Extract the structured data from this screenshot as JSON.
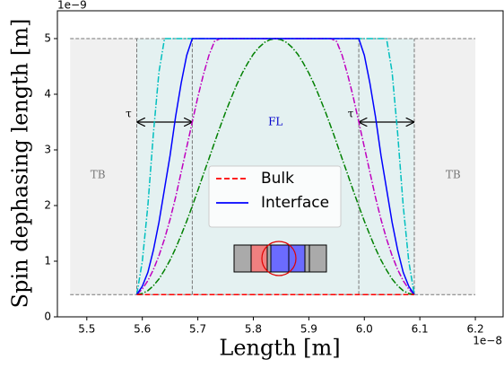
{
  "chart_data": {
    "type": "line",
    "xlabel": "Length [m]",
    "ylabel": "Spin dephasing length [m]",
    "x_offset_label": "1e−8",
    "y_offset_label": "1e−9",
    "xlim": [
      5.447,
      6.25
    ],
    "ylim": [
      0,
      5.5
    ],
    "xticks": [
      5.5,
      5.6,
      5.7,
      5.8,
      5.9,
      {
        "value": 6,
        "label": "6.0"
      },
      6.1,
      6.2
    ],
    "yticks": [
      0,
      1,
      2,
      3,
      4,
      5
    ],
    "legend": "center",
    "regions": [
      {
        "label": "TB",
        "x": [
          5.47,
          5.59
        ],
        "y": [
          0.4,
          5
        ],
        "color": "#f0f0f0",
        "label_at": [
          5.52,
          2.55
        ]
      },
      {
        "label": "FL",
        "x": [
          5.59,
          6.09
        ],
        "y": [
          0.4,
          5
        ],
        "color": "#e4f1f1",
        "label_at": [
          5.84,
          3.5
        ],
        "label_color": "#0000cc"
      },
      {
        "label": "TB",
        "x": [
          6.09,
          6.2
        ],
        "y": [
          0.4,
          5
        ],
        "color": "#f0f0f0",
        "label_at": [
          6.16,
          2.55
        ]
      }
    ],
    "boundaries": [
      5.59,
      5.69,
      5.99,
      6.09
    ],
    "hlines": [
      0.4,
      5
    ],
    "arrows": [
      {
        "label": "τ",
        "x": [
          5.59,
          5.69
        ],
        "y": 3.5
      },
      {
        "label": "τ",
        "x": [
          5.99,
          6.09
        ],
        "y": 3.5
      }
    ],
    "x": [
      5.59,
      5.6,
      5.61,
      5.62,
      5.63,
      5.64,
      5.65,
      5.66,
      5.67,
      5.68,
      5.69,
      5.7,
      5.71,
      5.72,
      5.73,
      5.74,
      5.75,
      5.76,
      5.77,
      5.78,
      5.79,
      5.8,
      5.81,
      5.82,
      5.83,
      5.84,
      5.85,
      5.86,
      5.87,
      5.88,
      5.89,
      5.9,
      5.91,
      5.92,
      5.93,
      5.94,
      5.95,
      5.96,
      5.97,
      5.98,
      5.99,
      6.0,
      6.01,
      6.02,
      6.03,
      6.04,
      6.05,
      6.06,
      6.07,
      6.08,
      6.09
    ],
    "series": [
      {
        "color": "#00bfbf",
        "dash": "dashdot",
        "values": [
          0.4,
          1.0,
          2.0,
          3.3,
          4.4,
          5,
          5,
          5,
          5,
          5,
          5,
          5,
          5,
          5,
          5,
          5,
          5,
          5,
          5,
          5,
          5,
          5,
          5,
          5,
          5,
          5,
          5,
          5,
          5,
          5,
          5,
          5,
          5,
          5,
          5,
          5,
          5,
          5,
          5,
          5,
          5,
          5,
          5,
          5,
          5,
          5,
          4.4,
          3.3,
          2.0,
          1.0,
          0.4
        ]
      },
      {
        "color": "#bf00bf",
        "dash": "dashdot",
        "values": [
          0.4,
          0.5,
          0.65,
          0.85,
          1.1,
          1.4,
          1.75,
          2.15,
          2.6,
          3.05,
          3.5,
          3.95,
          4.35,
          4.7,
          4.95,
          5,
          5,
          5,
          5,
          5,
          5,
          5,
          5,
          5,
          5,
          5,
          5,
          5,
          5,
          5,
          5,
          5,
          5,
          5,
          5,
          5,
          4.95,
          4.7,
          4.35,
          3.95,
          3.5,
          3.05,
          2.6,
          2.15,
          1.75,
          1.4,
          1.1,
          0.85,
          0.65,
          0.5,
          0.4
        ]
      },
      {
        "color": "#008000",
        "dash": "dashdot",
        "values": [
          0.4,
          0.42,
          0.47,
          0.56,
          0.68,
          0.84,
          1.02,
          1.23,
          1.47,
          1.72,
          1.99,
          2.27,
          2.56,
          2.84,
          3.13,
          3.41,
          3.68,
          3.93,
          4.17,
          4.38,
          4.56,
          4.72,
          4.84,
          4.93,
          4.98,
          5.0,
          4.98,
          4.93,
          4.84,
          4.72,
          4.56,
          4.38,
          4.17,
          3.93,
          3.68,
          3.41,
          3.13,
          2.84,
          2.56,
          2.27,
          1.99,
          1.72,
          1.47,
          1.23,
          1.02,
          0.84,
          0.68,
          0.56,
          0.47,
          0.42,
          0.4
        ]
      },
      {
        "name": "Interface",
        "color": "#0000ff",
        "dash": "solid",
        "values": [
          0.4,
          0.55,
          0.8,
          1.2,
          1.7,
          2.3,
          2.9,
          3.6,
          4.2,
          4.7,
          5,
          5,
          5,
          5,
          5,
          5,
          5,
          5,
          5,
          5,
          5,
          5,
          5,
          5,
          5,
          5,
          5,
          5,
          5,
          5,
          5,
          5,
          5,
          5,
          5,
          5,
          5,
          5,
          5,
          5,
          5,
          4.7,
          4.2,
          3.6,
          2.9,
          2.3,
          1.7,
          1.2,
          0.8,
          0.55,
          0.4
        ]
      },
      {
        "name": "Bulk",
        "color": "#ff0000",
        "dash": "dashed",
        "values": [
          0.4,
          0.4,
          0.4,
          0.4,
          0.4,
          0.4,
          0.4,
          0.4,
          0.4,
          0.4,
          0.4,
          0.4,
          0.4,
          0.4,
          0.4,
          0.4,
          0.4,
          0.4,
          0.4,
          0.4,
          0.4,
          0.4,
          0.4,
          0.4,
          0.4,
          0.4,
          0.4,
          0.4,
          0.4,
          0.4,
          0.4,
          0.4,
          0.4,
          0.4,
          0.4,
          0.4,
          0.4,
          0.4,
          0.4,
          0.4,
          0.4,
          0.4,
          0.4,
          0.4,
          0.4,
          0.4,
          0.4,
          0.4,
          0.4,
          0.4,
          0.4
        ]
      }
    ]
  }
}
